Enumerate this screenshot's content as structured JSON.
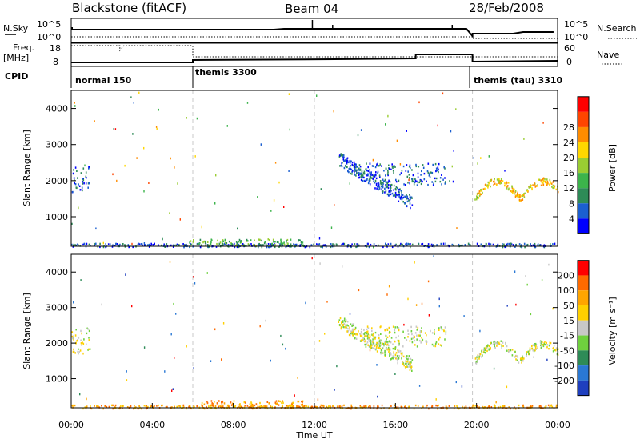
{
  "header": {
    "radar": "Blackstone (fitACF)",
    "beam": "Beam 04",
    "date": "28/Feb/2008"
  },
  "noise_panel": {
    "left_label": "N.Sky",
    "left_ticks": [
      "10^5",
      "10^0"
    ],
    "right_label": "N.Search",
    "right_ticks": [
      "10^5",
      "10^0"
    ]
  },
  "freq_panel": {
    "left_label_line1": "Freq.",
    "left_label_line2": "[MHz]",
    "left_ticks": [
      "18",
      "8"
    ],
    "right_label": "Nave",
    "right_ticks": [
      "60",
      "0"
    ]
  },
  "cpid": {
    "label": "CPID",
    "segments": [
      {
        "name": "normal 150",
        "start_hour": 0
      },
      {
        "name": "themis 3300",
        "start_hour": 6
      },
      {
        "name": "themis (tau) 3310",
        "start_hour": 19.8
      }
    ]
  },
  "colors": {
    "power_scale": [
      "#0000ff",
      "#1b5fd0",
      "#2e8b57",
      "#3cb44b",
      "#9acd32",
      "#ffd700",
      "#ff8c00",
      "#ff4500",
      "#ff0000"
    ],
    "velocity_scale": [
      "#1f3fbf",
      "#2a78d4",
      "#2e8b57",
      "#6fd13e",
      "#c8c8c8",
      "#ffd000",
      "#ffa500",
      "#ff6a00",
      "#ff0000"
    ]
  },
  "chart_data": [
    {
      "type": "heatmap",
      "panel": "power",
      "ylabel": "Slant Range [km]",
      "xlabel": "",
      "x_range_hours": [
        0,
        24
      ],
      "y_range_km": [
        180,
        4500
      ],
      "x_ticks": [
        "00:00",
        "04:00",
        "08:00",
        "12:00",
        "16:00",
        "20:00",
        "00:00"
      ],
      "y_ticks": [
        1000,
        2000,
        3000,
        4000
      ],
      "colorbar": {
        "label": "Power [dB]",
        "ticks": [
          4,
          8,
          12,
          16,
          20,
          24,
          28
        ],
        "range": [
          0,
          30
        ]
      },
      "echo_regions": [
        {
          "t0": 0.0,
          "t1": 0.9,
          "r0": 1700,
          "r1": 2450,
          "level": 1
        },
        {
          "t0": 0.0,
          "t1": 24.0,
          "r0": 180,
          "r1": 280,
          "level": 1
        },
        {
          "t0": 5.8,
          "t1": 11.5,
          "r0": 200,
          "r1": 400,
          "level": 3
        },
        {
          "t0": 13.2,
          "t1": 16.8,
          "r0": 1200,
          "r1": 2700,
          "level": 1
        },
        {
          "t0": 14.5,
          "t1": 18.5,
          "r0": 1900,
          "r1": 2500,
          "level": 1
        },
        {
          "t0": 19.9,
          "t1": 24.0,
          "r0": 1400,
          "r1": 2200,
          "level": 5
        }
      ]
    },
    {
      "type": "heatmap",
      "panel": "velocity",
      "ylabel": "Slant Range [km]",
      "xlabel": "Time UT",
      "x_range_hours": [
        0,
        24
      ],
      "y_range_km": [
        180,
        4500
      ],
      "x_ticks": [
        "00:00",
        "04:00",
        "08:00",
        "12:00",
        "16:00",
        "20:00",
        "00:00"
      ],
      "y_ticks": [
        1000,
        2000,
        3000,
        4000
      ],
      "colorbar": {
        "label": "Velocity [m s⁻¹]",
        "ticks": [
          200,
          100,
          50,
          15,
          -15,
          -50,
          -100,
          -200
        ]
      },
      "echo_regions": [
        {
          "t0": 0.0,
          "t1": 0.9,
          "r0": 1700,
          "r1": 2450,
          "level": 4
        },
        {
          "t0": 0.0,
          "t1": 24.0,
          "r0": 180,
          "r1": 280,
          "level": 6
        },
        {
          "t0": 5.8,
          "t1": 11.5,
          "r0": 200,
          "r1": 400,
          "level": 6
        },
        {
          "t0": 13.2,
          "t1": 16.8,
          "r0": 1200,
          "r1": 2700,
          "level": 4
        },
        {
          "t0": 14.5,
          "t1": 18.5,
          "r0": 1900,
          "r1": 2500,
          "level": 4
        },
        {
          "t0": 19.9,
          "t1": 24.0,
          "r0": 1400,
          "r1": 2200,
          "level": 4
        }
      ]
    }
  ]
}
